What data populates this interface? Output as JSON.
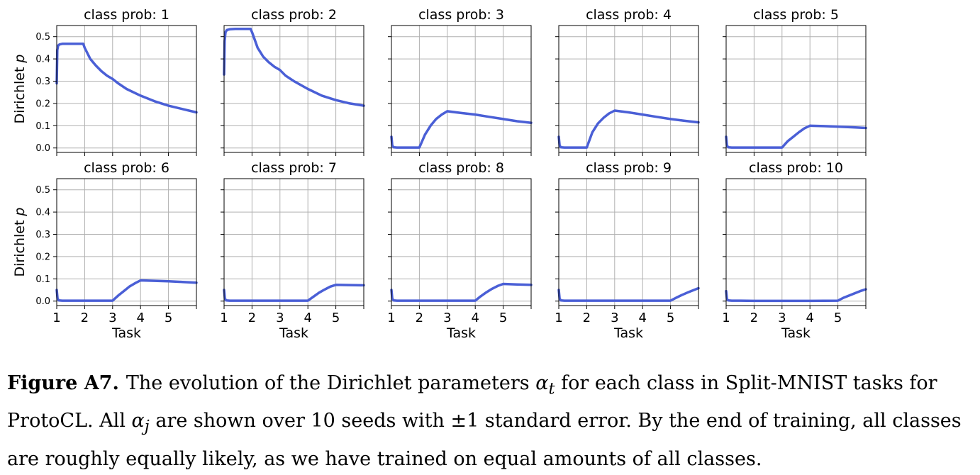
{
  "caption": {
    "label": "Figure A7.",
    "t1": "The evolution of the Dirichlet parameters ",
    "sym1": "α",
    "sub1": "t",
    "t2": " for each class in Split-MNIST tasks for ProtoCL. All ",
    "sym2": "α",
    "sub2": "j",
    "t3": " are shown over 10 seeds with ±1 standard error. By the end of training, all classes are roughly equally likely, as we have trained on equal amounts of all classes."
  },
  "chart_data": {
    "type": "line",
    "series_color": "#4a5fd6",
    "grid": true,
    "xlim": [
      1,
      6
    ],
    "ylim": [
      -0.02,
      0.55
    ],
    "xticks": [
      1,
      2,
      3,
      4,
      5,
      6
    ],
    "xtick_labels": [
      "1",
      "2",
      "3",
      "4",
      "5",
      ""
    ],
    "yticks": [
      0.0,
      0.1,
      0.2,
      0.3,
      0.4,
      0.5
    ],
    "ytick_labels": [
      "0.0",
      "0.1",
      "0.2",
      "0.3",
      "0.4",
      "0.5"
    ],
    "xlabel": "Task",
    "ylabel": "Dirichlet p",
    "ylabel_main": "Dirichlet ",
    "ylabel_sym": "p",
    "panels": [
      {
        "title": "class prob: 1",
        "x": [
          1,
          1.02,
          1.05,
          1.1,
          1.2,
          1.4,
          1.6,
          1.8,
          1.95,
          2.0,
          2.2,
          2.4,
          2.6,
          2.8,
          3.0,
          3.2,
          3.5,
          4.0,
          4.5,
          5.0,
          5.5,
          6.0
        ],
        "y": [
          0.29,
          0.44,
          0.46,
          0.465,
          0.468,
          0.468,
          0.468,
          0.468,
          0.468,
          0.45,
          0.4,
          0.37,
          0.345,
          0.325,
          0.31,
          0.29,
          0.265,
          0.235,
          0.21,
          0.19,
          0.175,
          0.16
        ]
      },
      {
        "title": "class prob: 2",
        "x": [
          1,
          1.02,
          1.05,
          1.1,
          1.2,
          1.4,
          1.6,
          1.8,
          1.95,
          2.0,
          2.2,
          2.4,
          2.6,
          2.8,
          3.0,
          3.2,
          3.5,
          4.0,
          4.5,
          5.0,
          5.5,
          6.0
        ],
        "y": [
          0.33,
          0.48,
          0.52,
          0.53,
          0.533,
          0.535,
          0.535,
          0.535,
          0.535,
          0.52,
          0.45,
          0.41,
          0.385,
          0.365,
          0.35,
          0.325,
          0.3,
          0.265,
          0.235,
          0.215,
          0.2,
          0.19
        ]
      },
      {
        "title": "class prob: 3",
        "x": [
          1,
          1.03,
          1.08,
          1.2,
          1.5,
          1.8,
          2.0,
          2.2,
          2.4,
          2.6,
          2.8,
          3.0,
          3.5,
          4.0,
          4.5,
          5.0,
          5.5,
          6.0
        ],
        "y": [
          0.05,
          0.01,
          0.003,
          0.002,
          0.002,
          0.002,
          0.002,
          0.06,
          0.1,
          0.13,
          0.15,
          0.165,
          0.157,
          0.15,
          0.14,
          0.13,
          0.12,
          0.113
        ]
      },
      {
        "title": "class prob: 4",
        "x": [
          1,
          1.03,
          1.08,
          1.2,
          1.5,
          1.8,
          2.0,
          2.2,
          2.4,
          2.6,
          2.8,
          3.0,
          3.5,
          4.0,
          4.5,
          5.0,
          5.5,
          6.0
        ],
        "y": [
          0.05,
          0.01,
          0.003,
          0.002,
          0.002,
          0.002,
          0.002,
          0.07,
          0.11,
          0.135,
          0.155,
          0.168,
          0.16,
          0.15,
          0.14,
          0.13,
          0.122,
          0.115
        ]
      },
      {
        "title": "class prob: 5",
        "x": [
          1,
          1.03,
          1.08,
          1.2,
          1.5,
          2.0,
          2.5,
          3.0,
          3.2,
          3.4,
          3.6,
          3.8,
          4.0,
          4.5,
          5.0,
          5.5,
          6.0
        ],
        "y": [
          0.05,
          0.01,
          0.003,
          0.002,
          0.002,
          0.002,
          0.002,
          0.002,
          0.03,
          0.05,
          0.07,
          0.088,
          0.1,
          0.098,
          0.096,
          0.093,
          0.09
        ]
      },
      {
        "title": "class prob: 6",
        "x": [
          1,
          1.03,
          1.08,
          1.2,
          1.5,
          2.0,
          2.5,
          3.0,
          3.2,
          3.4,
          3.6,
          3.8,
          4.0,
          4.5,
          5.0,
          5.5,
          6.0
        ],
        "y": [
          0.05,
          0.01,
          0.003,
          0.002,
          0.002,
          0.002,
          0.002,
          0.002,
          0.025,
          0.045,
          0.065,
          0.08,
          0.093,
          0.091,
          0.089,
          0.086,
          0.083
        ]
      },
      {
        "title": "class prob: 7",
        "x": [
          1,
          1.03,
          1.08,
          1.2,
          1.5,
          2.0,
          3.0,
          4.0,
          4.2,
          4.4,
          4.6,
          4.8,
          5.0,
          5.5,
          6.0
        ],
        "y": [
          0.05,
          0.01,
          0.003,
          0.002,
          0.002,
          0.002,
          0.002,
          0.002,
          0.02,
          0.038,
          0.052,
          0.065,
          0.073,
          0.072,
          0.071
        ]
      },
      {
        "title": "class prob: 8",
        "x": [
          1,
          1.03,
          1.08,
          1.2,
          1.5,
          2.0,
          3.0,
          4.0,
          4.2,
          4.4,
          4.6,
          4.8,
          5.0,
          5.5,
          6.0
        ],
        "y": [
          0.05,
          0.01,
          0.003,
          0.002,
          0.002,
          0.002,
          0.002,
          0.002,
          0.022,
          0.04,
          0.055,
          0.068,
          0.077,
          0.075,
          0.073
        ]
      },
      {
        "title": "class prob: 9",
        "x": [
          1,
          1.03,
          1.08,
          1.2,
          1.5,
          2.0,
          3.0,
          4.0,
          5.0,
          5.2,
          5.4,
          5.6,
          5.8,
          6.0
        ],
        "y": [
          0.05,
          0.01,
          0.003,
          0.002,
          0.002,
          0.002,
          0.002,
          0.002,
          0.002,
          0.015,
          0.027,
          0.038,
          0.048,
          0.058
        ]
      },
      {
        "title": "class prob: 10",
        "x": [
          1,
          1.03,
          1.08,
          1.2,
          1.5,
          2.0,
          3.0,
          4.0,
          5.0,
          5.2,
          5.4,
          5.6,
          5.8,
          6.0
        ],
        "y": [
          0.045,
          0.008,
          0.003,
          0.002,
          0.002,
          0.001,
          0.001,
          0.001,
          0.002,
          0.015,
          0.025,
          0.035,
          0.045,
          0.053
        ]
      }
    ]
  }
}
